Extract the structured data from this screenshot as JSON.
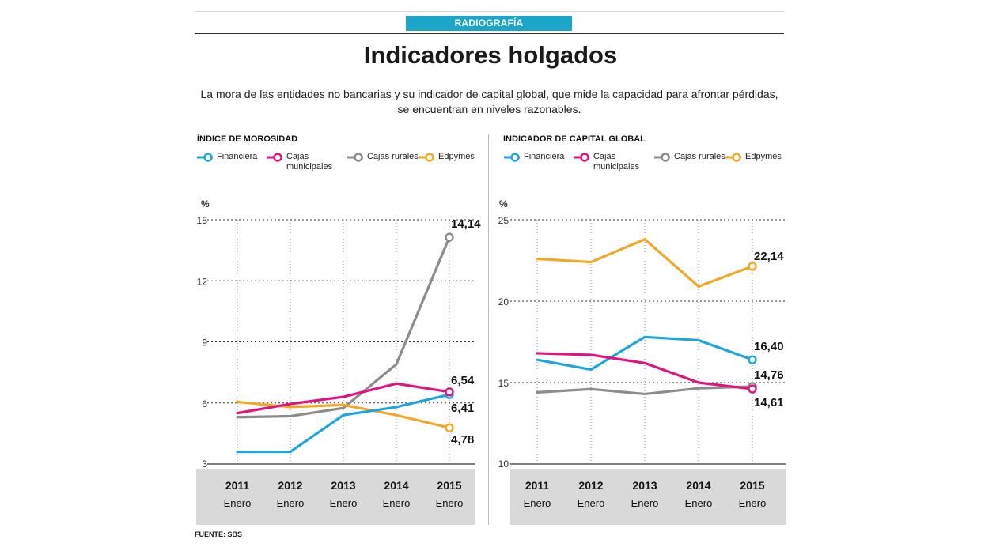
{
  "header": {
    "section_tag": "RADIOGRAFÍA",
    "title": "Indicadores holgados",
    "subtitle": "La mora de las entidades no bancarias y su indicador de capital global, que mide la capacidad para afrontar pérdidas, se encuentran en niveles razonables."
  },
  "footer": {
    "source": "FUENTE: SBS"
  },
  "colors": {
    "Financiera": "#1ba6df",
    "Cajas municipales": "#e4127f",
    "Cajas rurales": "#8c8c8c",
    "Edpymes": "#f5a623"
  },
  "chart_data": [
    {
      "type": "line",
      "title": "ÍNDICE DE MOROSIDAD",
      "ylabel": "%",
      "ylim": [
        3,
        15
      ],
      "yticks": [
        "3",
        "6",
        "9",
        "12",
        "15"
      ],
      "categories": [
        "2011",
        "2012",
        "2013",
        "2014",
        "2015"
      ],
      "category_sublabel": "Enero",
      "legend": [
        "Financiera",
        "Cajas municipales",
        "Cajas rurales",
        "Edpymes"
      ],
      "series": [
        {
          "name": "Cajas rurales",
          "color": "#8c8c8c",
          "values": [
            5.3,
            5.35,
            5.75,
            7.9,
            14.14
          ],
          "end_label": "14,14"
        },
        {
          "name": "Edpymes",
          "color": "#f5a623",
          "values": [
            6.05,
            5.8,
            5.9,
            5.4,
            4.78
          ],
          "end_label": "4,78"
        },
        {
          "name": "Financiera",
          "color": "#1ba6df",
          "values": [
            3.6,
            3.6,
            5.4,
            5.8,
            6.41
          ],
          "end_label": "6,41"
        },
        {
          "name": "Cajas municipales",
          "color": "#e4127f",
          "values": [
            5.5,
            5.95,
            6.3,
            6.95,
            6.54
          ],
          "end_label": "6,54"
        }
      ]
    },
    {
      "type": "line",
      "title": "INDICADOR DE CAPITAL GLOBAL",
      "ylabel": "%",
      "ylim": [
        10,
        25
      ],
      "yticks": [
        "10",
        "15",
        "20",
        "25"
      ],
      "categories": [
        "2011",
        "2012",
        "2013",
        "2014",
        "2015"
      ],
      "category_sublabel": "Enero",
      "legend": [
        "Financiera",
        "Cajas municipales",
        "Cajas rurales",
        "Edpymes"
      ],
      "series": [
        {
          "name": "Cajas rurales",
          "color": "#8c8c8c",
          "values": [
            14.4,
            14.6,
            14.3,
            14.65,
            14.76
          ],
          "end_label": "14,76"
        },
        {
          "name": "Edpymes",
          "color": "#f5a623",
          "values": [
            22.6,
            22.4,
            23.8,
            20.9,
            22.14
          ],
          "end_label": "22,14"
        },
        {
          "name": "Financiera",
          "color": "#1ba6df",
          "values": [
            16.4,
            15.8,
            17.8,
            17.6,
            16.4
          ],
          "end_label": "16,40"
        },
        {
          "name": "Cajas municipales",
          "color": "#e4127f",
          "values": [
            16.8,
            16.7,
            16.2,
            15.0,
            14.61
          ],
          "end_label": "14,61"
        }
      ]
    }
  ]
}
